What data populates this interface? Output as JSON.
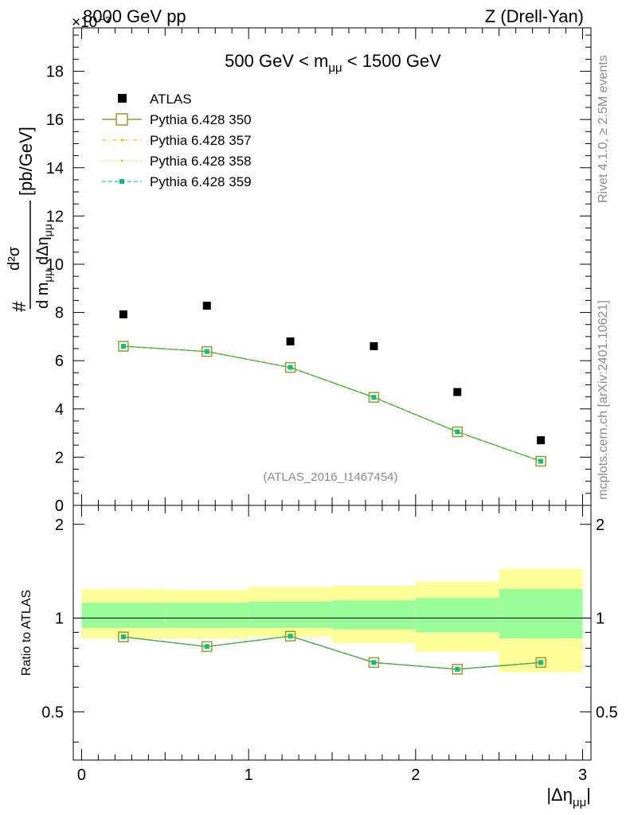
{
  "header": {
    "energy_label": "8000 GeV pp",
    "process_label": "Z (Drell-Yan)",
    "exponent_label": "×10⁻³",
    "mass_window": "500 GeV < m",
    "mass_sub": "μμ",
    "mass_window_tail": " < 1500 GeV",
    "analysis_id": "(ATLAS_2016_I1467454)"
  },
  "side_labels": {
    "rivet": "Rivet 4.1.0, ≥ 2.5M events",
    "mcplots": "mcplots.cern.ch [arXiv:2401.10621]"
  },
  "axes": {
    "ylabel_main": "[pb/GeV]",
    "ylabel_ratio": "Ratio to ATLAS",
    "xlabel": "|Δη",
    "xlabel_sub": "μμ",
    "xlabel_end": "|"
  },
  "legend": [
    {
      "label": "ATLAS",
      "style": "data",
      "color": "#000000"
    },
    {
      "label": "Pythia 6.428 350",
      "style": "open-square",
      "color": "#999933"
    },
    {
      "label": "Pythia 6.428 357",
      "style": "dashdot",
      "color": "#f0b400"
    },
    {
      "label": "Pythia 6.428 358",
      "style": "dotted",
      "color": "#cccc00"
    },
    {
      "label": "Pythia 6.428 359",
      "style": "dashed",
      "color": "#00c080"
    }
  ],
  "chart_data": [
    {
      "type": "scatter",
      "panel": "main",
      "title": "500 GeV < m_μμ < 1500 GeV",
      "xlabel": "|Δη_μμ|",
      "ylabel": "d²σ / d m_μμ dΔη_μμ [pb/GeV] ×10⁻³",
      "xlim": [
        -0.05,
        3.05
      ],
      "ylim": [
        0,
        19.8
      ],
      "x": [
        0.25,
        0.75,
        1.25,
        1.75,
        2.25,
        2.75
      ],
      "x_ticks": [
        0,
        1,
        2,
        3
      ],
      "y_ticks": [
        0,
        2,
        4,
        6,
        8,
        10,
        12,
        14,
        16,
        18
      ],
      "series": [
        {
          "name": "ATLAS",
          "values": [
            7.92,
            8.28,
            6.8,
            6.6,
            4.7,
            2.7
          ]
        },
        {
          "name": "Pythia 6.428 350",
          "values": [
            6.6,
            6.38,
            5.72,
            4.48,
            3.05,
            1.83
          ]
        },
        {
          "name": "Pythia 6.428 357",
          "values": [
            6.6,
            6.38,
            5.72,
            4.48,
            3.05,
            1.83
          ]
        },
        {
          "name": "Pythia 6.428 358",
          "values": [
            6.6,
            6.38,
            5.72,
            4.48,
            3.05,
            1.83
          ]
        },
        {
          "name": "Pythia 6.428 359",
          "values": [
            6.6,
            6.38,
            5.72,
            4.48,
            3.05,
            1.83
          ]
        }
      ]
    },
    {
      "type": "line",
      "panel": "ratio",
      "ylabel": "Ratio to ATLAS",
      "xlim": [
        -0.05,
        3.05
      ],
      "ylim": [
        0.35,
        2.3
      ],
      "y_ticks": [
        0.5,
        1,
        2
      ],
      "bins": [
        [
          0,
          0.5
        ],
        [
          0.5,
          1
        ],
        [
          1,
          1.5
        ],
        [
          1.5,
          2
        ],
        [
          2,
          2.5
        ],
        [
          2.5,
          3
        ]
      ],
      "x": [
        0.25,
        0.75,
        1.25,
        1.75,
        2.25,
        2.75
      ],
      "band_stat": [
        [
          0.93,
          1.12
        ],
        [
          0.93,
          1.12
        ],
        [
          0.93,
          1.13
        ],
        [
          0.92,
          1.14
        ],
        [
          0.9,
          1.16
        ],
        [
          0.86,
          1.24
        ]
      ],
      "band_total": [
        [
          0.86,
          1.24
        ],
        [
          0.86,
          1.23
        ],
        [
          0.87,
          1.26
        ],
        [
          0.83,
          1.27
        ],
        [
          0.78,
          1.31
        ],
        [
          0.67,
          1.44
        ]
      ],
      "series": [
        {
          "name": "Pythia 6.428 350",
          "values": [
            0.87,
            0.81,
            0.875,
            0.72,
            0.685,
            0.72
          ]
        },
        {
          "name": "Pythia 6.428 359",
          "values": [
            0.87,
            0.81,
            0.875,
            0.72,
            0.685,
            0.72
          ]
        }
      ]
    }
  ]
}
